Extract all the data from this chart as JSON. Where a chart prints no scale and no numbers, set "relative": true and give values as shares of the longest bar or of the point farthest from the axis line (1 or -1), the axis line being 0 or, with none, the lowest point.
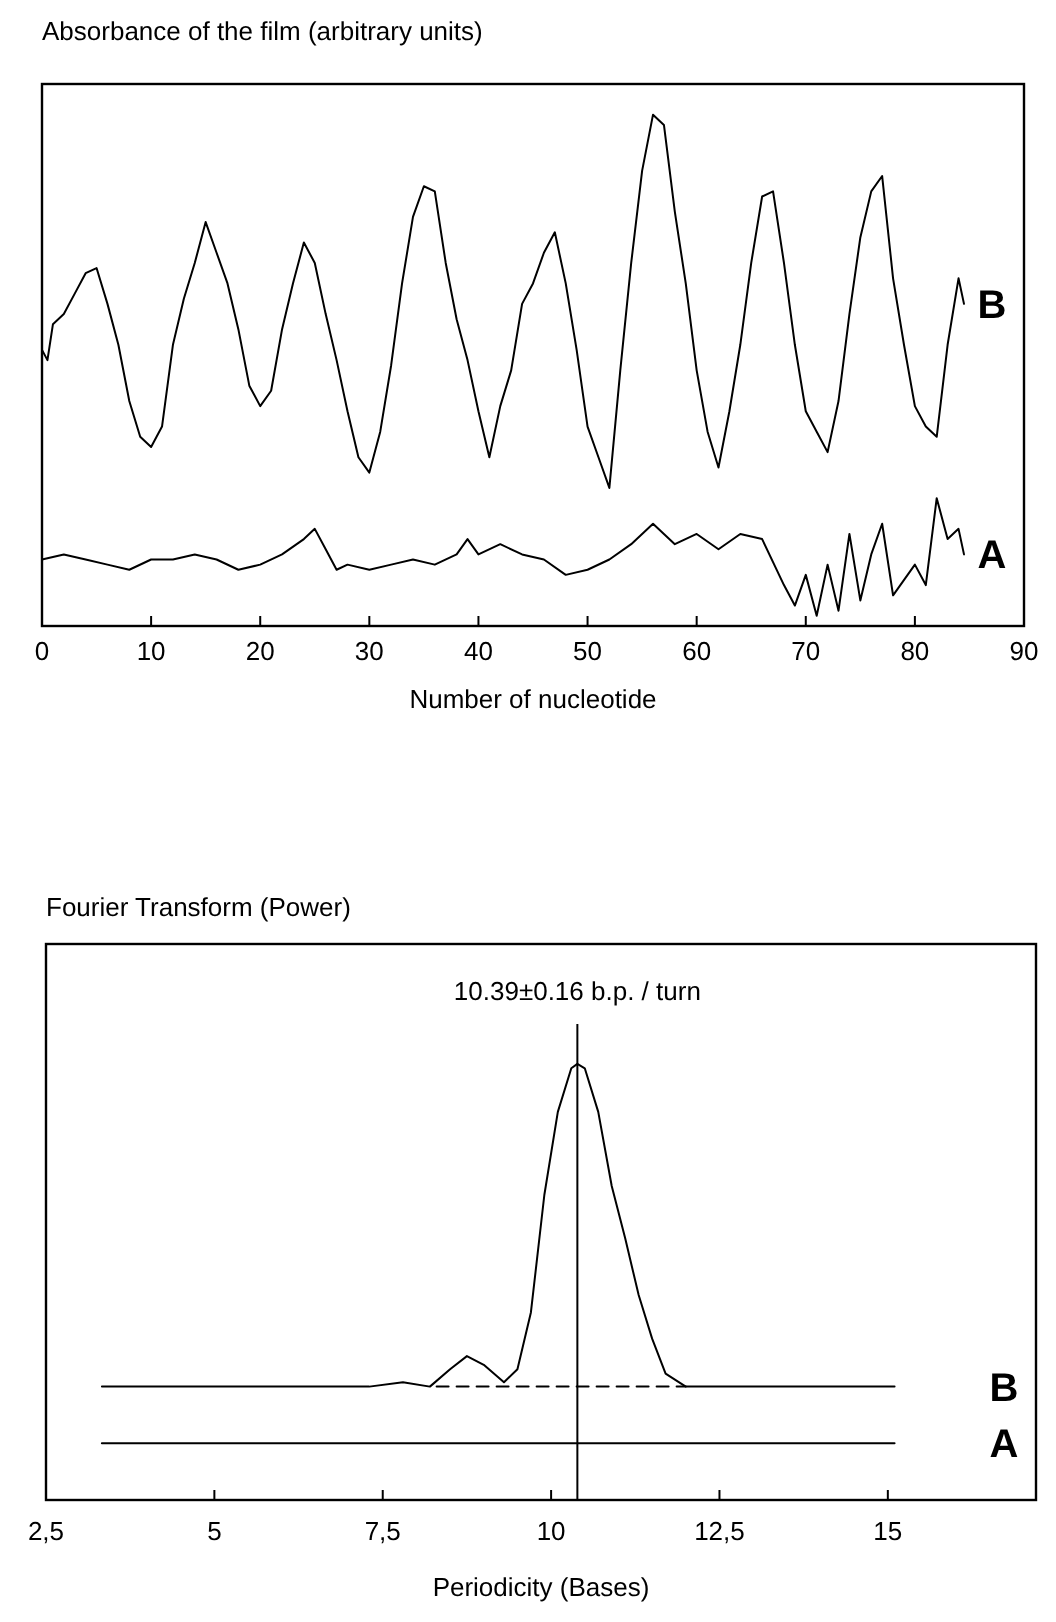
{
  "chart_data": [
    {
      "type": "line",
      "title": "Absorbance of the film (arbitrary units)",
      "xlabel": "Number of nucleotide",
      "relative": true,
      "xlim": [
        0,
        90
      ],
      "xticks": [
        0,
        10,
        20,
        30,
        40,
        50,
        60,
        70,
        80,
        90
      ],
      "legend": false,
      "series": [
        {
          "name": "B",
          "color": "#000000",
          "x": [
            0,
            0.5,
            1,
            2,
            3,
            4,
            5,
            6,
            7,
            8,
            9,
            10,
            11,
            12,
            13,
            14,
            15,
            16,
            17,
            18,
            19,
            20,
            21,
            22,
            23,
            24,
            25,
            26,
            27,
            28,
            29,
            30,
            31,
            32,
            33,
            34,
            35,
            36,
            37,
            38,
            39,
            40,
            41,
            42,
            43,
            44,
            45,
            46,
            47,
            48,
            49,
            50,
            51,
            52,
            53,
            54,
            55,
            56,
            57,
            58,
            59,
            60,
            61,
            62,
            63,
            64,
            65,
            66,
            67,
            68,
            69,
            70,
            71,
            72,
            73,
            74,
            75,
            76,
            77,
            78,
            79,
            80,
            81,
            82,
            83,
            84,
            84.5
          ],
          "values": [
            0.54,
            0.52,
            0.59,
            0.61,
            0.65,
            0.69,
            0.7,
            0.63,
            0.55,
            0.44,
            0.37,
            0.35,
            0.39,
            0.55,
            0.64,
            0.71,
            0.79,
            0.73,
            0.67,
            0.58,
            0.47,
            0.43,
            0.46,
            0.58,
            0.67,
            0.75,
            0.71,
            0.61,
            0.52,
            0.42,
            0.33,
            0.3,
            0.38,
            0.51,
            0.67,
            0.8,
            0.86,
            0.85,
            0.71,
            0.6,
            0.52,
            0.42,
            0.33,
            0.43,
            0.5,
            0.63,
            0.67,
            0.73,
            0.77,
            0.67,
            0.54,
            0.39,
            0.33,
            0.27,
            0.5,
            0.71,
            0.89,
            1,
            0.98,
            0.81,
            0.67,
            0.5,
            0.38,
            0.31,
            0.42,
            0.55,
            0.71,
            0.84,
            0.85,
            0.71,
            0.55,
            0.42,
            0.38,
            0.34,
            0.44,
            0.61,
            0.76,
            0.85,
            0.88,
            0.68,
            0.55,
            0.43,
            0.39,
            0.37,
            0.55,
            0.68,
            0.63
          ]
        },
        {
          "name": "A",
          "color": "#000000",
          "x": [
            0,
            2,
            4,
            6,
            8,
            10,
            12,
            14,
            16,
            18,
            20,
            22,
            24,
            25,
            26,
            27,
            28,
            30,
            32,
            34,
            36,
            38,
            39,
            40,
            42,
            44,
            46,
            48,
            50,
            52,
            54,
            56,
            58,
            60,
            62,
            64,
            66,
            68,
            69,
            70,
            71,
            72,
            73,
            74,
            75,
            76,
            77,
            78,
            80,
            81,
            82,
            83,
            84,
            84.5
          ],
          "values": [
            0.13,
            0.14,
            0.13,
            0.12,
            0.11,
            0.13,
            0.13,
            0.14,
            0.13,
            0.11,
            0.12,
            0.14,
            0.17,
            0.19,
            0.15,
            0.11,
            0.12,
            0.11,
            0.12,
            0.13,
            0.12,
            0.14,
            0.17,
            0.14,
            0.16,
            0.14,
            0.13,
            0.1,
            0.11,
            0.13,
            0.16,
            0.2,
            0.16,
            0.18,
            0.15,
            0.18,
            0.17,
            0.08,
            0.04,
            0.1,
            0.02,
            0.12,
            0.03,
            0.18,
            0.05,
            0.14,
            0.2,
            0.06,
            0.12,
            0.08,
            0.25,
            0.17,
            0.19,
            0.14
          ]
        }
      ]
    },
    {
      "type": "line",
      "title": "Fourier Transform (Power)",
      "xlabel": "Periodicity (Bases)",
      "relative": true,
      "xlim": [
        2.5,
        17.2
      ],
      "xticks": [
        {
          "value": 2.5,
          "label": "2,5"
        },
        5,
        {
          "value": 7.5,
          "label": "7,5"
        },
        10,
        {
          "value": 12.5,
          "label": "12,5"
        },
        15
      ],
      "legend": false,
      "series": [
        {
          "name": "B",
          "color": "#000000",
          "x": [
            3.33,
            5,
            6.5,
            7.3,
            7.8,
            8.2,
            8.5,
            8.75,
            9,
            9.3,
            9.5,
            9.7,
            9.9,
            10.1,
            10.3,
            10.39,
            10.5,
            10.7,
            10.9,
            11.1,
            11.3,
            11.5,
            11.7,
            12,
            13,
            14,
            15.1
          ],
          "values": [
            0.26,
            0.26,
            0.26,
            0.26,
            0.27,
            0.26,
            0.3,
            0.33,
            0.31,
            0.27,
            0.3,
            0.43,
            0.7,
            0.89,
            0.99,
            1,
            0.99,
            0.89,
            0.72,
            0.6,
            0.47,
            0.37,
            0.29,
            0.26,
            0.26,
            0.26,
            0.26
          ]
        },
        {
          "color": "#000000",
          "line_style": "dashed",
          "x": [
            8.3,
            12
          ],
          "values": [
            0.26,
            0.26
          ]
        },
        {
          "name": "A",
          "color": "#000000",
          "x": [
            3.33,
            15.1
          ],
          "values": [
            0.13,
            0.13
          ]
        }
      ],
      "ref_lines": [
        {
          "axis": "x",
          "value": 10.39,
          "label": "10.39±0.16 b.p. / turn",
          "color": "#000000"
        }
      ]
    }
  ]
}
